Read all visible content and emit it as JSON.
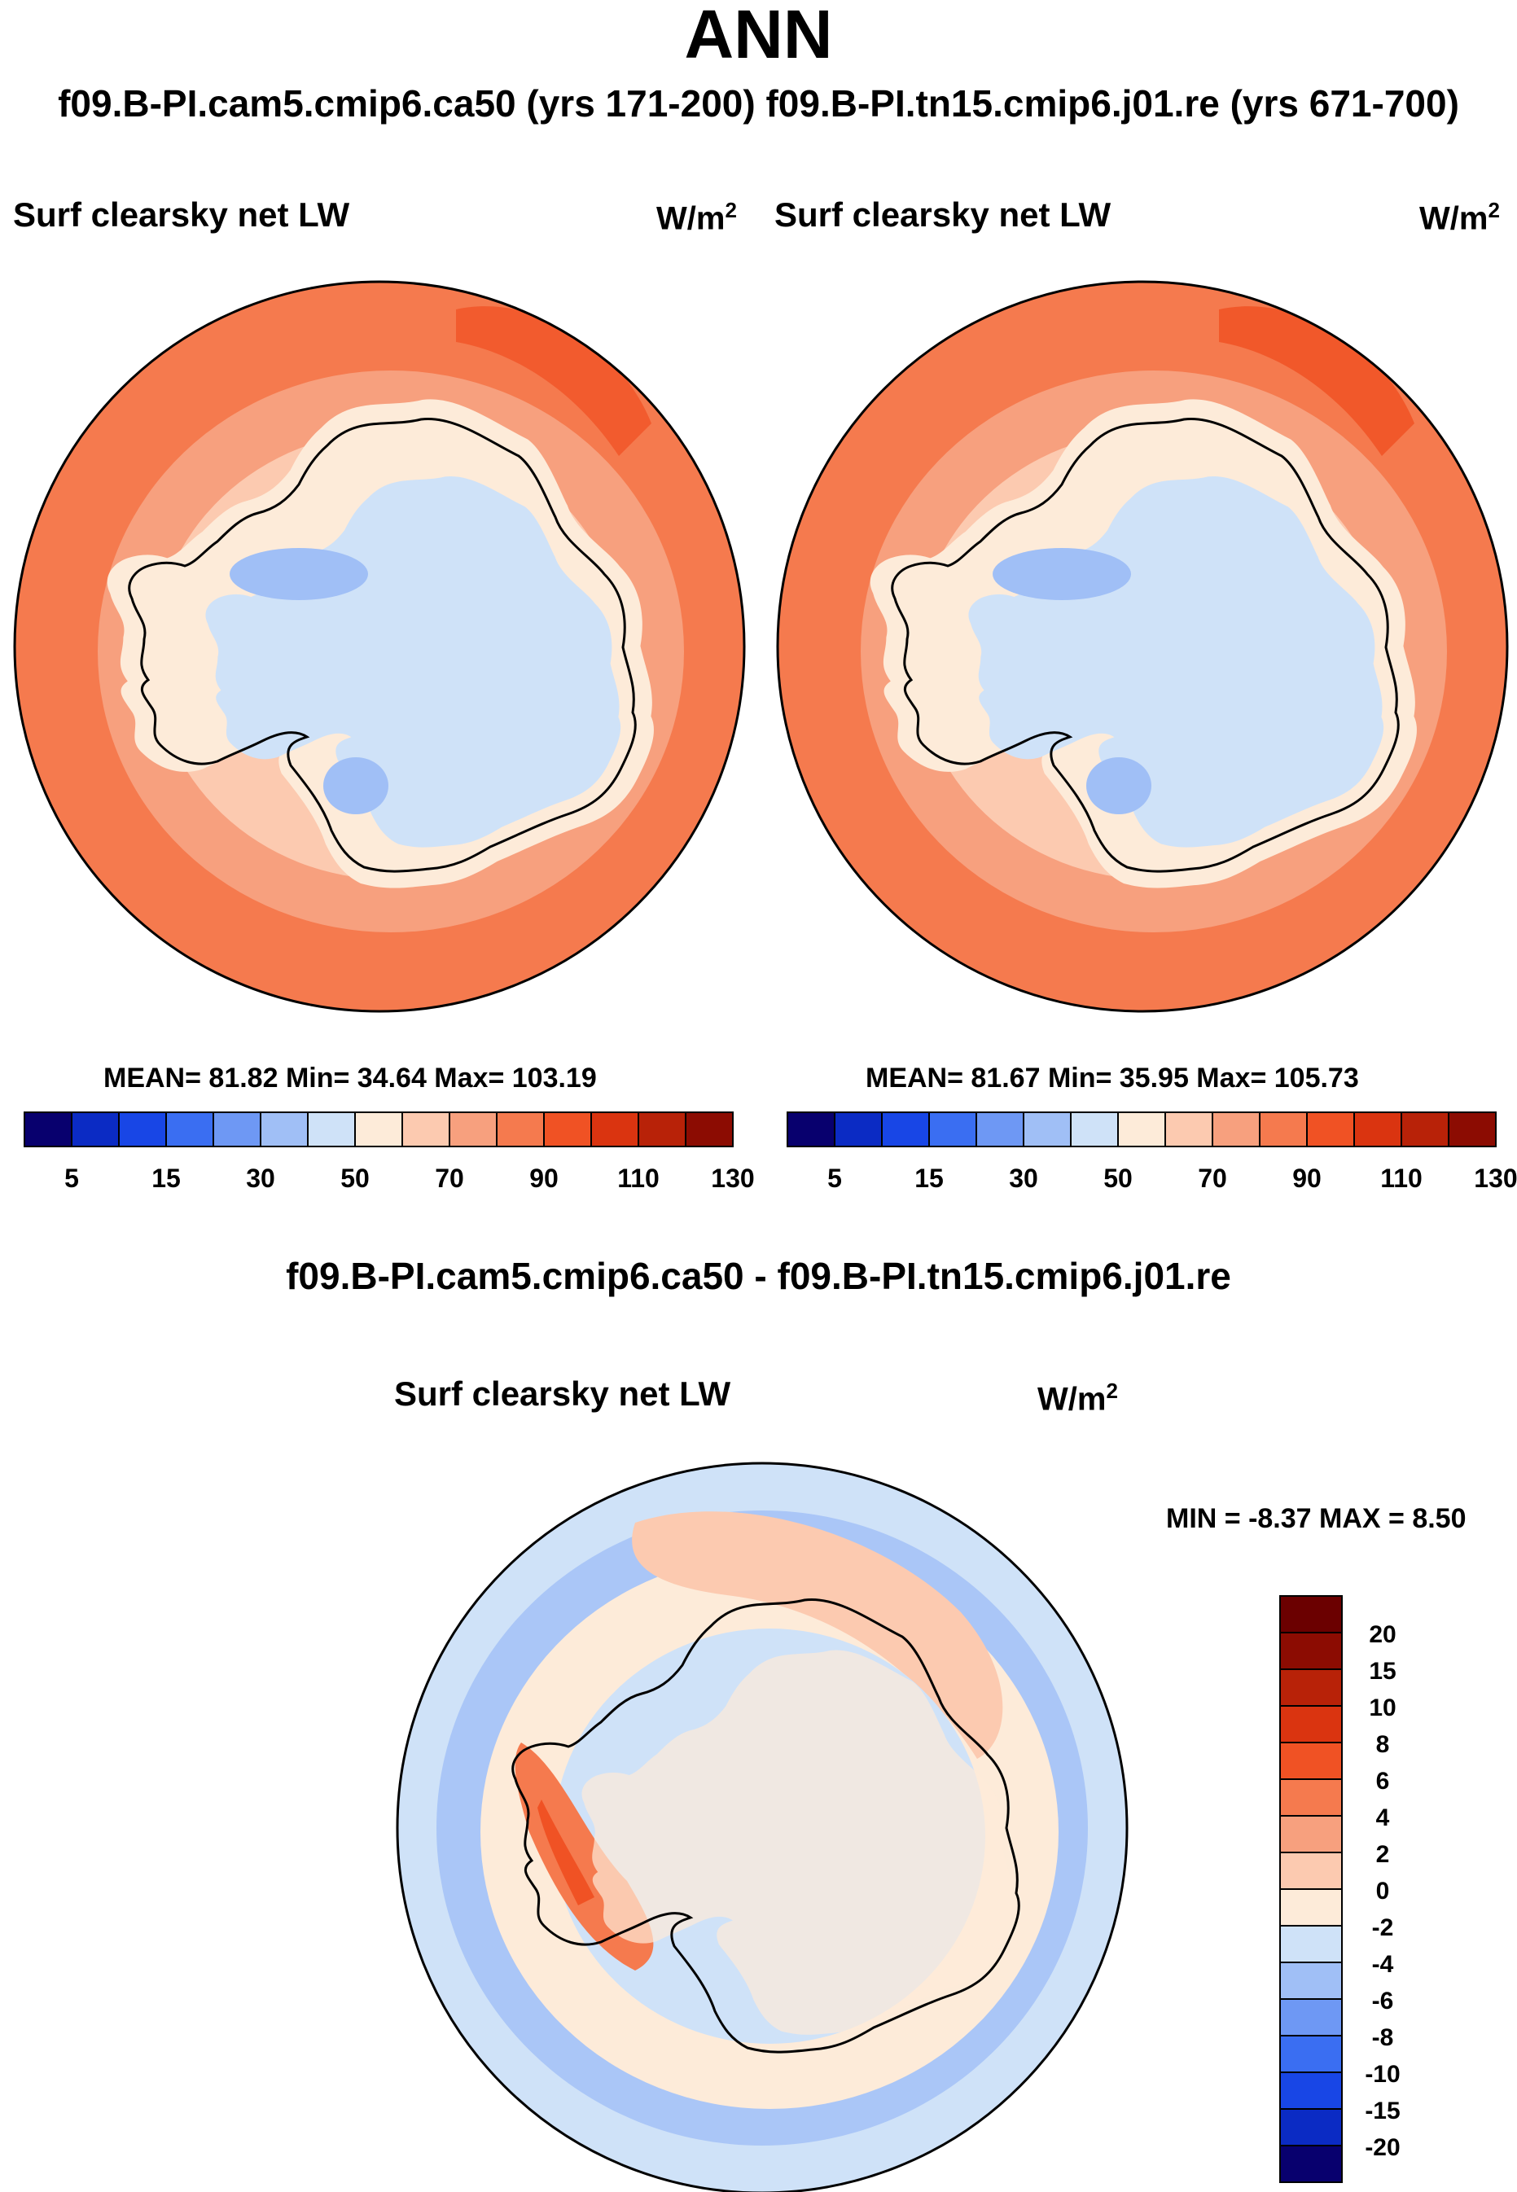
{
  "season": "ANN",
  "run_header": "f09.B-PI.cam5.cmip6.ca50 (yrs 171-200)  f09.B-PI.tn15.cmip6.j01.re (yrs 671-700)",
  "panels": [
    {
      "variable": "Surf clearsky net LW",
      "units": "W/m",
      "units_sup": "2",
      "stats_text": "MEAN=  81.82  Min=  34.64  Max= 103.19",
      "mean": 81.82,
      "min": 34.64,
      "max": 103.19,
      "colorbar_labels": [
        "5",
        "15",
        "30",
        "50",
        "70",
        "90",
        "110",
        "130"
      ]
    },
    {
      "variable": "Surf clearsky net LW",
      "units": "W/m",
      "units_sup": "2",
      "stats_text": "MEAN=  81.67  Min=  35.95  Max= 105.73",
      "mean": 81.67,
      "min": 35.95,
      "max": 105.73,
      "colorbar_labels": [
        "5",
        "15",
        "30",
        "50",
        "70",
        "90",
        "110",
        "130"
      ]
    }
  ],
  "diff": {
    "header": "f09.B-PI.cam5.cmip6.ca50 - f09.B-PI.tn15.cmip6.j01.re",
    "variable": "Surf clearsky net LW",
    "units": "W/m",
    "units_sup": "2",
    "stats_text": "MIN =  -8.37 MAX =   8.50",
    "min": -8.37,
    "max": 8.5,
    "colorbar_labels": [
      "20",
      "15",
      "10",
      "8",
      "6",
      "4",
      "2",
      "0",
      "-2",
      "-4",
      "-6",
      "-8",
      "-10",
      "-15",
      "-20"
    ]
  },
  "colors": {
    "scale16": [
      "#08006e",
      "#0b2bc4",
      "#1846e6",
      "#3a6ef2",
      "#6e98f4",
      "#a0bff6",
      "#cfe2f8",
      "#fdebd9",
      "#fccab0",
      "#f7a07e",
      "#f57a4e",
      "#f05224",
      "#da3410",
      "#b82208",
      "#8c0c02"
    ],
    "absolute_map": {
      "ocean_outer": "#f57a4e",
      "ocean_mid": "#f7a07e",
      "ocean_inner": "#fccab0",
      "ice_edge": "#fdebd9",
      "continent": "#cfe2f8",
      "plateau_low": "#a0bff6",
      "hotspot": "#f05224"
    },
    "diff_map": {
      "background": "#cfe2f8",
      "ring_pos": "#fdebd9",
      "ring_pos2": "#fccab0",
      "weddell_pos": "#f57a4e",
      "weddell_pos2": "#f05224",
      "outer_neg": "#a0bff6",
      "continent": "#cfe2f8"
    }
  }
}
